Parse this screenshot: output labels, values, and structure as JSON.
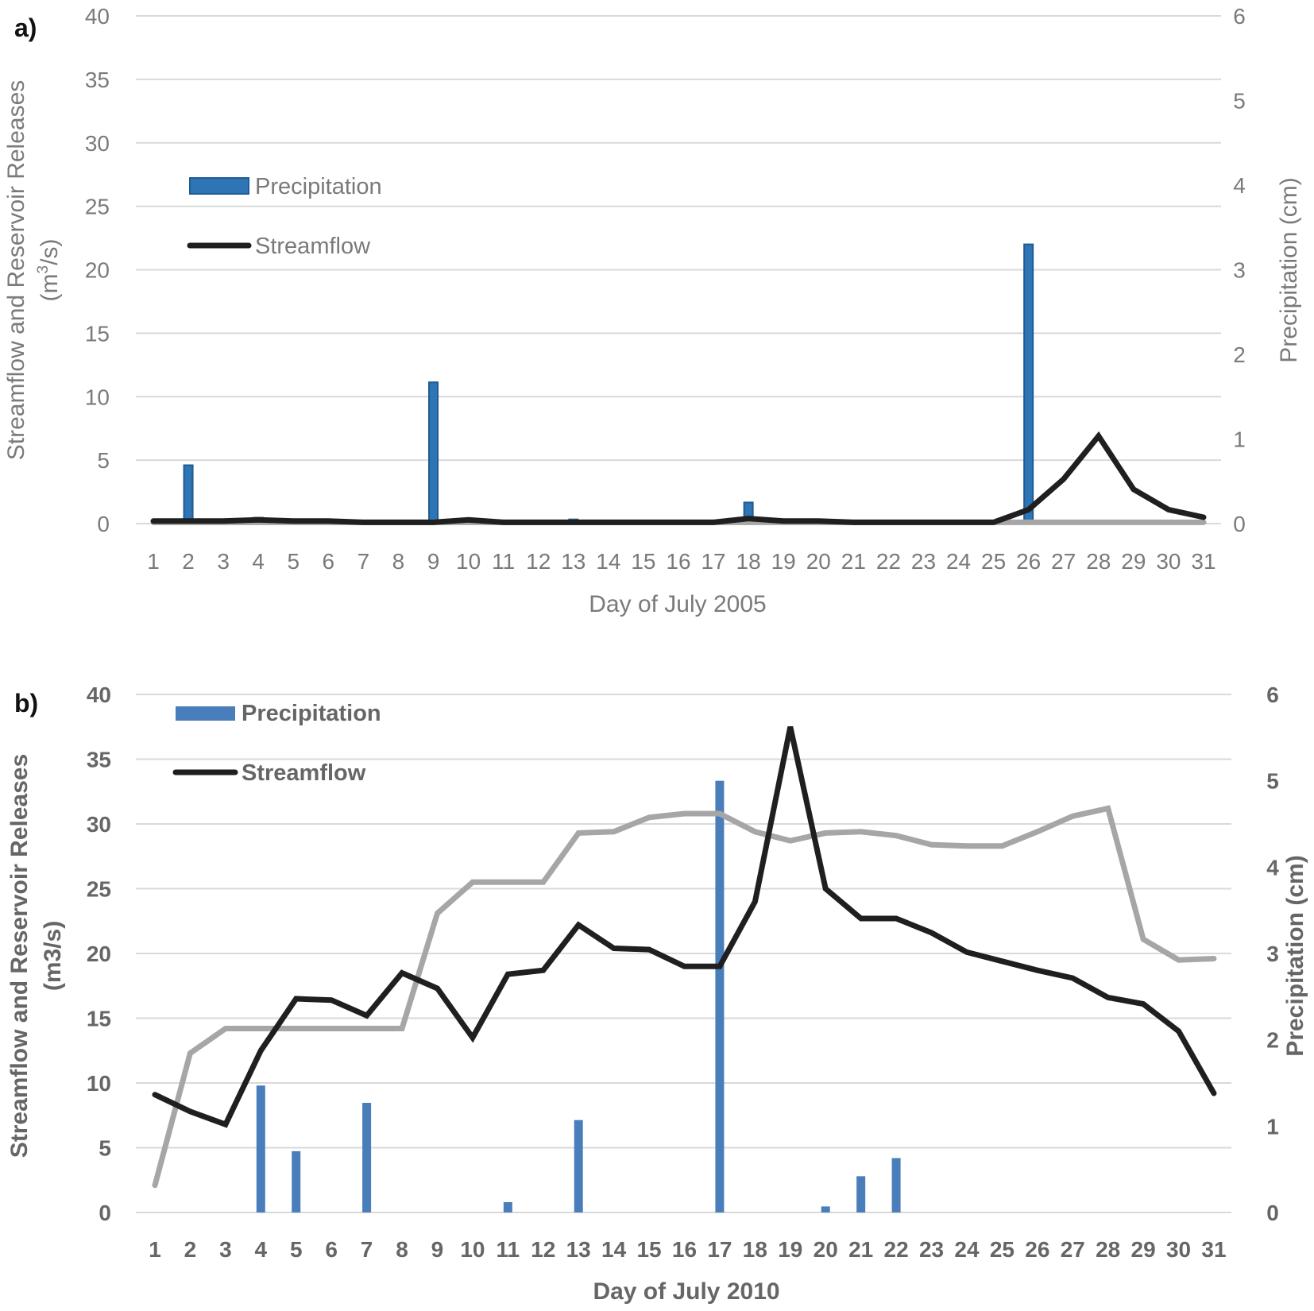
{
  "chart_data": [
    {
      "type": "bar+line",
      "panel_label": "a)",
      "title": "",
      "xlabel": "Day of July 2005",
      "ylabel_line1": "Streamflow and Reservoir Releases",
      "ylabel_line2_prefix": "(m",
      "ylabel_line2_sup": "3",
      "ylabel_line2_suffix": "/s)",
      "ylabel_right": "Precipitation (cm)",
      "categories": [
        "1",
        "2",
        "3",
        "4",
        "5",
        "6",
        "7",
        "8",
        "9",
        "10",
        "11",
        "12",
        "13",
        "14",
        "15",
        "16",
        "17",
        "18",
        "19",
        "20",
        "21",
        "22",
        "23",
        "24",
        "25",
        "26",
        "27",
        "28",
        "29",
        "30",
        "31"
      ],
      "ylim": [
        0,
        40
      ],
      "yticks": [
        "0",
        "5",
        "10",
        "15",
        "20",
        "25",
        "30",
        "35",
        "40"
      ],
      "ylim_right": [
        0,
        6
      ],
      "yticks_right": [
        "0",
        "1",
        "2",
        "3",
        "4",
        "5",
        "6"
      ],
      "legend": [
        "Precipitation",
        "Streamflow"
      ],
      "series": [
        {
          "name": "Precipitation",
          "kind": "bar",
          "axis": "right",
          "color": "#2e75b6",
          "values": [
            0,
            0.69,
            0,
            0.07,
            0,
            0.05,
            0,
            0,
            1.67,
            0,
            0,
            0,
            0.05,
            0,
            0,
            0,
            0,
            0.25,
            0,
            0,
            0,
            0,
            0,
            0,
            0,
            3.3,
            0,
            0,
            0,
            0,
            0
          ]
        },
        {
          "name": "Streamflow",
          "kind": "line",
          "axis": "left",
          "color": "#1f1f1f",
          "values": [
            0.2,
            0.2,
            0.2,
            0.3,
            0.2,
            0.2,
            0.1,
            0.1,
            0.1,
            0.3,
            0.1,
            0.1,
            0.1,
            0.1,
            0.1,
            0.1,
            0.1,
            0.4,
            0.2,
            0.2,
            0.1,
            0.1,
            0.1,
            0.1,
            0.1,
            1.1,
            3.5,
            6.9,
            2.7,
            1.1,
            0.5
          ]
        },
        {
          "name": "Reservoir Releases",
          "kind": "line",
          "axis": "left",
          "color": "#a6a6a6",
          "values": [
            0.1,
            0.1,
            0.1,
            0.1,
            0.1,
            0.1,
            0.1,
            0.1,
            0.1,
            0.1,
            0.1,
            0.1,
            0.1,
            0.1,
            0.1,
            0.1,
            0.1,
            0.1,
            0.1,
            0.1,
            0.1,
            0.1,
            0.1,
            0.1,
            0.1,
            0.1,
            0.1,
            0.1,
            0.1,
            0.1,
            0.1
          ]
        }
      ]
    },
    {
      "type": "bar+line",
      "panel_label": "b)",
      "title": "",
      "xlabel": "Day of July 2010",
      "ylabel_line1": "Streamflow and Reservoir Releases",
      "ylabel_line2": "(m3/s)",
      "ylabel_right": "Precipitation (cm)",
      "categories": [
        "1",
        "2",
        "3",
        "4",
        "5",
        "6",
        "7",
        "8",
        "9",
        "10",
        "11",
        "12",
        "13",
        "14",
        "15",
        "16",
        "17",
        "18",
        "19",
        "20",
        "21",
        "22",
        "23",
        "24",
        "25",
        "26",
        "27",
        "28",
        "29",
        "30",
        "31"
      ],
      "ylim": [
        0,
        40
      ],
      "yticks": [
        "0",
        "5",
        "10",
        "15",
        "20",
        "25",
        "30",
        "35",
        "40"
      ],
      "ylim_right": [
        0,
        6
      ],
      "yticks_right": [
        "0",
        "1",
        "2",
        "3",
        "4",
        "5",
        "6"
      ],
      "legend": [
        "Precipitation",
        "Streamflow"
      ],
      "series": [
        {
          "name": "Precipitation",
          "kind": "bar",
          "axis": "right",
          "color": "#4a7ebb",
          "values": [
            0,
            0,
            0,
            1.47,
            0.71,
            0,
            1.27,
            0,
            0,
            0,
            0.12,
            0,
            1.07,
            0,
            0,
            0,
            5.0,
            0,
            0,
            0.07,
            0.42,
            0.63,
            0,
            0,
            0,
            0,
            0,
            0,
            0,
            0,
            0
          ]
        },
        {
          "name": "Streamflow",
          "kind": "line",
          "axis": "left",
          "color": "#1f1f1f",
          "values": [
            9.1,
            7.8,
            6.8,
            12.5,
            16.5,
            16.4,
            15.2,
            18.5,
            17.3,
            13.5,
            18.4,
            18.7,
            22.2,
            20.4,
            20.3,
            19.0,
            19.0,
            24.0,
            37.5,
            25.0,
            22.7,
            22.7,
            21.6,
            20.1,
            19.4,
            18.7,
            18.1,
            16.6,
            16.1,
            14.0,
            9.2
          ]
        },
        {
          "name": "Reservoir Releases",
          "kind": "line",
          "axis": "left",
          "color": "#a6a6a6",
          "values": [
            2.1,
            12.3,
            14.2,
            14.2,
            14.2,
            14.2,
            14.2,
            14.2,
            23.1,
            25.5,
            25.5,
            25.5,
            29.3,
            29.4,
            30.5,
            30.8,
            30.8,
            29.4,
            28.7,
            29.3,
            29.4,
            29.1,
            28.4,
            28.3,
            28.3,
            29.4,
            30.6,
            31.2,
            21.1,
            19.5,
            19.6
          ]
        }
      ]
    }
  ]
}
